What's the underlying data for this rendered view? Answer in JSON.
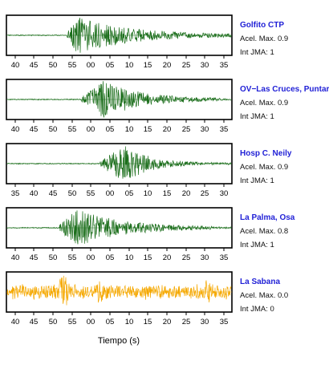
{
  "chart_data": {
    "type": "line",
    "xlabel": "Tiempo (s)",
    "panels": [
      {
        "station": "Golfito CTP",
        "acel_label": "Acel. Max. 0.9",
        "int_label": "Int JMA: 1",
        "color": "#1b6e1b",
        "ticks": [
          "40",
          "45",
          "50",
          "55",
          "00",
          "05",
          "10",
          "15",
          "20",
          "25",
          "30",
          "35"
        ],
        "onset_seconds": 54,
        "peak_seconds": 57,
        "end_seconds": 100,
        "amplitude": 0.9,
        "seed": 11
      },
      {
        "station": "OV−Las Cruces, Puntar",
        "acel_label": "Acel. Max. 0.9",
        "int_label": "Int JMA: 1",
        "color": "#1b6e1b",
        "ticks": [
          "40",
          "45",
          "50",
          "55",
          "00",
          "05",
          "10",
          "15",
          "20",
          "25",
          "30",
          "35"
        ],
        "onset_seconds": 58,
        "peak_seconds": 64,
        "end_seconds": 95,
        "amplitude": 0.9,
        "seed": 23
      },
      {
        "station": "Hosp C. Neily",
        "acel_label": "Acel. Max. 0.9",
        "int_label": "Int JMA: 1",
        "color": "#1b6e1b",
        "ticks": [
          "35",
          "40",
          "45",
          "50",
          "55",
          "00",
          "05",
          "10",
          "15",
          "20",
          "25",
          "30"
        ],
        "onset_seconds": 58,
        "peak_seconds": 65,
        "end_seconds": 85,
        "amplitude": 0.9,
        "seed": 37
      },
      {
        "station": "La Palma, Osa",
        "acel_label": "Acel. Max. 0.8",
        "int_label": "Int JMA: 1",
        "color": "#1b6e1b",
        "ticks": [
          "40",
          "45",
          "50",
          "55",
          "00",
          "05",
          "10",
          "15",
          "20",
          "25",
          "30",
          "35"
        ],
        "onset_seconds": 52,
        "peak_seconds": 57,
        "end_seconds": 94,
        "amplitude": 0.8,
        "seed": 51
      },
      {
        "station": "La Sabana",
        "acel_label": "Acel. Max. 0.0",
        "int_label": "Int JMA: 0",
        "color": "#f5a800",
        "ticks": [
          "40",
          "45",
          "50",
          "55",
          "00",
          "05",
          "10",
          "15",
          "20",
          "25",
          "30",
          "35"
        ],
        "onset_seconds": 37,
        "peak_seconds": 53,
        "end_seconds": 97,
        "amplitude": 0.0,
        "seed": 71
      }
    ]
  }
}
